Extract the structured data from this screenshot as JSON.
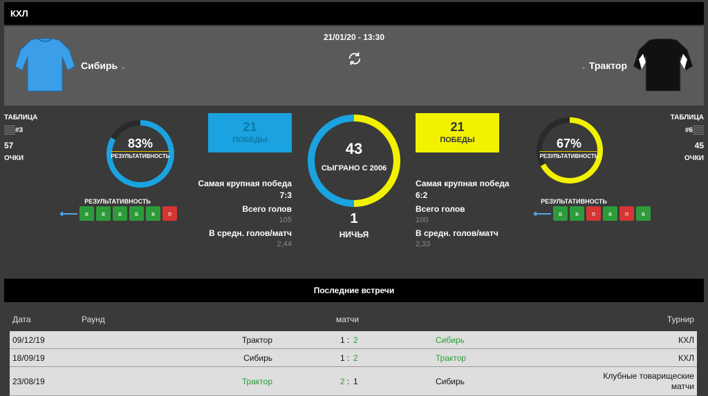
{
  "league": "КХЛ",
  "date": "21/01/20 - 13:30",
  "home": {
    "name": "Сибирь",
    "shirt_color": "#3a9ee8",
    "table_label": "ТАБЛИЦА",
    "position": "#3",
    "points": "57",
    "points_label": "ОЧКИ",
    "efficiency_pct": "83%",
    "efficiency_value": 83,
    "efficiency_label": "РЕЗУЛЬТАТИВНОСТЬ",
    "form_title": "РЕЗУЛЬТАТИВНОСТЬ",
    "form": [
      "в",
      "в",
      "в",
      "в",
      "в",
      "п"
    ],
    "wins": "21",
    "wins_label": "ПОБЕДЫ",
    "biggest_win_label": "Самая крупная победа",
    "biggest_win": "7:3",
    "total_goals_label": "Всего голов",
    "total_goals": "105",
    "avg_goals_label": "В средн. голов/матч",
    "avg_goals": "2,44"
  },
  "away": {
    "name": "Трактор",
    "shirt_color": "#111111",
    "table_label": "ТАБЛИЦА",
    "position": "#6",
    "points": "45",
    "points_label": "ОЧКИ",
    "efficiency_pct": "67%",
    "efficiency_value": 67,
    "efficiency_label": "РЕЗУЛЬТАТИВНОСТЬ",
    "form_title": "РЕЗУЛЬТАТИВНОСТЬ",
    "form": [
      "в",
      "в",
      "п",
      "в",
      "п",
      "в"
    ],
    "wins": "21",
    "wins_label": "ПОБЕДЫ",
    "biggest_win_label": "Самая крупная победа",
    "biggest_win": "6:2",
    "total_goals_label": "Всего голов",
    "total_goals": "100",
    "avg_goals_label": "В средн. голов/матч",
    "avg_goals": "2,33"
  },
  "center": {
    "played": "43",
    "played_label": "СЫГРАНО С 2006",
    "draws": "1",
    "draws_label": "НИЧЬЯ"
  },
  "colors": {
    "home": "#1aa3e0",
    "away": "#f2f200",
    "win": "#2e9b3a",
    "loss": "#d63535"
  },
  "recent": {
    "title": "Последние встречи",
    "headers": {
      "date": "Дата",
      "round": "Раунд",
      "matches": "матчи",
      "tournament": "Турнир"
    },
    "rows": [
      {
        "date": "09/12/19",
        "home": "Трактор",
        "hs": "1",
        "sep": ":",
        "as": "2",
        "away": "Сибирь",
        "tournament": "КХЛ",
        "winner": "away"
      },
      {
        "date": "18/09/19",
        "home": "Сибирь",
        "hs": "1",
        "sep": ":",
        "as": "2",
        "away": "Трактор",
        "tournament": "КХЛ",
        "winner": "away"
      },
      {
        "date": "23/08/19",
        "home": "Трактор",
        "hs": "2",
        "sep": ":",
        "as": "1",
        "away": "Сибирь",
        "tournament": "Клубные товарищеские матчи",
        "winner": "home"
      }
    ]
  },
  "icons": {
    "refresh": "refresh-icon",
    "chevron": "chevron-down-icon"
  }
}
